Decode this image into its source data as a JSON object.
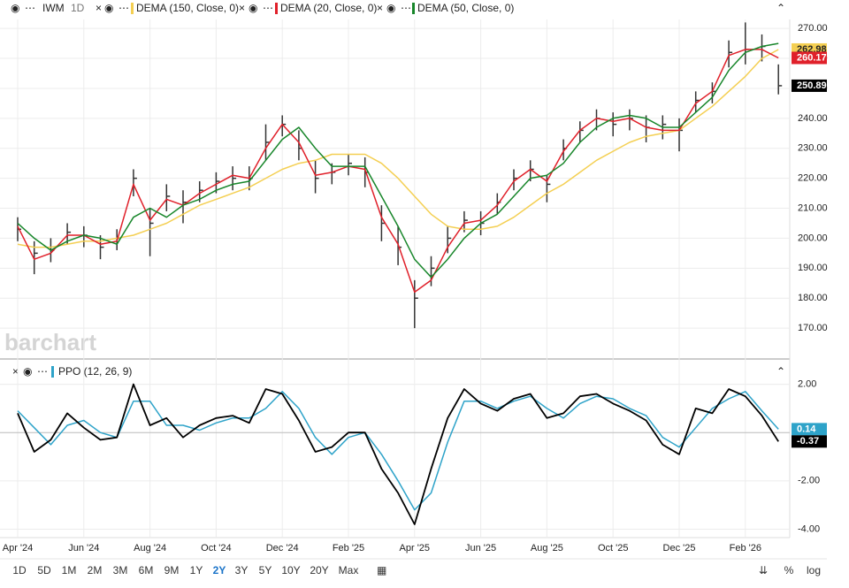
{
  "watermark": "barchart",
  "chart_data": [
    {
      "type": "ohlc",
      "title": "IWM",
      "interval": "1D",
      "categories": [
        "Apr '24",
        null,
        null,
        null,
        "Jun '24",
        null,
        null,
        null,
        "Aug '24",
        null,
        null,
        null,
        "Oct '24",
        null,
        null,
        null,
        "Dec '24",
        null,
        null,
        null,
        "Feb '25",
        null,
        null,
        null,
        "Apr '25",
        null,
        null,
        null,
        "Jun '25",
        null,
        null,
        null,
        "Aug '25",
        null,
        null,
        null,
        "Oct '25",
        null,
        null,
        null,
        "Dec '25",
        null,
        null,
        null,
        "Feb '26",
        null,
        null
      ],
      "high": [
        207,
        199,
        200,
        205,
        204,
        201,
        203,
        223,
        210,
        218,
        216,
        219,
        222,
        224,
        224,
        238,
        241,
        236,
        226,
        225,
        228,
        227,
        211,
        204,
        186,
        194,
        204,
        209,
        209,
        215,
        223,
        226,
        221,
        233,
        239,
        243,
        242,
        243,
        241,
        241,
        240,
        249,
        252,
        266,
        272,
        268,
        258
      ],
      "low": [
        199,
        188,
        192,
        198,
        197,
        193,
        196,
        214,
        194,
        209,
        205,
        212,
        215,
        216,
        216,
        226,
        234,
        226,
        215,
        218,
        221,
        217,
        199,
        191,
        170,
        184,
        195,
        202,
        201,
        208,
        216,
        219,
        212,
        226,
        232,
        236,
        234,
        236,
        232,
        233,
        229,
        242,
        245,
        257,
        258,
        259,
        248
      ],
      "close": [
        203,
        195,
        196,
        202,
        201,
        197,
        200,
        220,
        205,
        214,
        212,
        216,
        219,
        220,
        220,
        232,
        238,
        230,
        220,
        222,
        225,
        222,
        205,
        197,
        180,
        190,
        200,
        206,
        205,
        212,
        220,
        223,
        218,
        230,
        236,
        240,
        238,
        240,
        237,
        238,
        236,
        246,
        249,
        262,
        263,
        264,
        250.89
      ],
      "bar_color": "#333333",
      "series": [
        {
          "name": "DEMA (150, Close, 0)",
          "color": "#f4cf52",
          "values": [
            198,
            197,
            197,
            198,
            199,
            199,
            200,
            201,
            203,
            205,
            208,
            211,
            213,
            215,
            217,
            220,
            223,
            225,
            226,
            228,
            228,
            228,
            225,
            220,
            214,
            208,
            204,
            203,
            203,
            204,
            207,
            211,
            215,
            218,
            222,
            226,
            229,
            232,
            234,
            235,
            236,
            240,
            244,
            249,
            254,
            260,
            262.98
          ]
        },
        {
          "name": "DEMA (20, Close, 0)",
          "color": "#e0202a",
          "values": [
            204,
            193,
            195,
            201,
            201,
            198,
            199,
            218,
            206,
            213,
            211,
            215,
            218,
            221,
            220,
            230,
            238,
            232,
            221,
            222,
            224,
            223,
            207,
            198,
            182,
            186,
            197,
            205,
            206,
            211,
            219,
            223,
            219,
            229,
            236,
            240,
            239,
            240,
            237,
            236,
            236,
            245,
            249,
            261,
            263,
            263,
            260.17
          ]
        },
        {
          "name": "DEMA (50, Close, 0)",
          "color": "#17862a",
          "values": [
            205,
            200,
            196,
            199,
            201,
            200,
            198,
            207,
            210,
            207,
            211,
            213,
            216,
            218,
            219,
            226,
            233,
            237,
            230,
            224,
            224,
            224,
            214,
            204,
            193,
            187,
            193,
            200,
            205,
            208,
            214,
            220,
            221,
            225,
            232,
            237,
            240,
            241,
            240,
            237,
            237,
            242,
            247,
            256,
            262,
            264,
            265
          ]
        }
      ],
      "ylim": [
        160,
        273
      ],
      "yticks": [
        {
          "value": 170,
          "label": "170.00"
        },
        {
          "value": 180,
          "label": "180.00"
        },
        {
          "value": 190,
          "label": "190.00"
        },
        {
          "value": 200,
          "label": "200.00"
        },
        {
          "value": 210,
          "label": "210.00"
        },
        {
          "value": 220,
          "label": "220.00"
        },
        {
          "value": 230,
          "label": "230.00"
        },
        {
          "value": 240,
          "label": "240.00"
        },
        {
          "value": 250,
          "label": "250.00"
        },
        {
          "value": 260,
          "label": "260.00"
        },
        {
          "value": 270,
          "label": "270.00"
        }
      ],
      "grid": true
    },
    {
      "type": "line",
      "title": "PPO (12, 26, 9)",
      "series": [
        {
          "name": "PPO",
          "color": "#000000",
          "values": [
            0.8,
            -0.8,
            -0.3,
            0.8,
            0.2,
            -0.3,
            -0.2,
            2.0,
            0.3,
            0.6,
            -0.2,
            0.3,
            0.6,
            0.7,
            0.4,
            1.8,
            1.6,
            0.5,
            -0.8,
            -0.6,
            0.0,
            0.0,
            -1.5,
            -2.5,
            -3.8,
            -1.5,
            0.6,
            1.8,
            1.2,
            0.9,
            1.4,
            1.6,
            0.6,
            0.8,
            1.5,
            1.6,
            1.2,
            0.9,
            0.5,
            -0.5,
            -0.9,
            1.0,
            0.8,
            1.8,
            1.5,
            0.7,
            -0.37
          ]
        },
        {
          "name": "Signal",
          "color": "#2ea3c9",
          "values": [
            0.9,
            0.2,
            -0.5,
            0.3,
            0.5,
            0.0,
            -0.2,
            1.3,
            1.3,
            0.3,
            0.3,
            0.1,
            0.4,
            0.6,
            0.6,
            1.0,
            1.7,
            1.0,
            -0.2,
            -0.9,
            -0.2,
            0.0,
            -0.9,
            -2.0,
            -3.2,
            -2.5,
            -0.4,
            1.3,
            1.3,
            1.0,
            1.3,
            1.5,
            1.0,
            0.6,
            1.2,
            1.5,
            1.4,
            1.0,
            0.7,
            -0.2,
            -0.6,
            0.2,
            1.0,
            1.4,
            1.7,
            0.9,
            0.14
          ]
        }
      ],
      "ylim": [
        -4.35,
        2.9
      ],
      "yticks": [
        {
          "value": 2,
          "label": "2.00"
        },
        {
          "value": -2,
          "label": "-2.00"
        },
        {
          "value": -4,
          "label": "-4.00"
        }
      ],
      "grid": true
    }
  ],
  "toolbar": {
    "ranges": [
      "1D",
      "5D",
      "1M",
      "2M",
      "3M",
      "6M",
      "9M",
      "1Y",
      "2Y",
      "3Y",
      "5Y",
      "10Y",
      "20Y",
      "Max"
    ],
    "active": 8,
    "right": [
      "%",
      "log"
    ]
  }
}
